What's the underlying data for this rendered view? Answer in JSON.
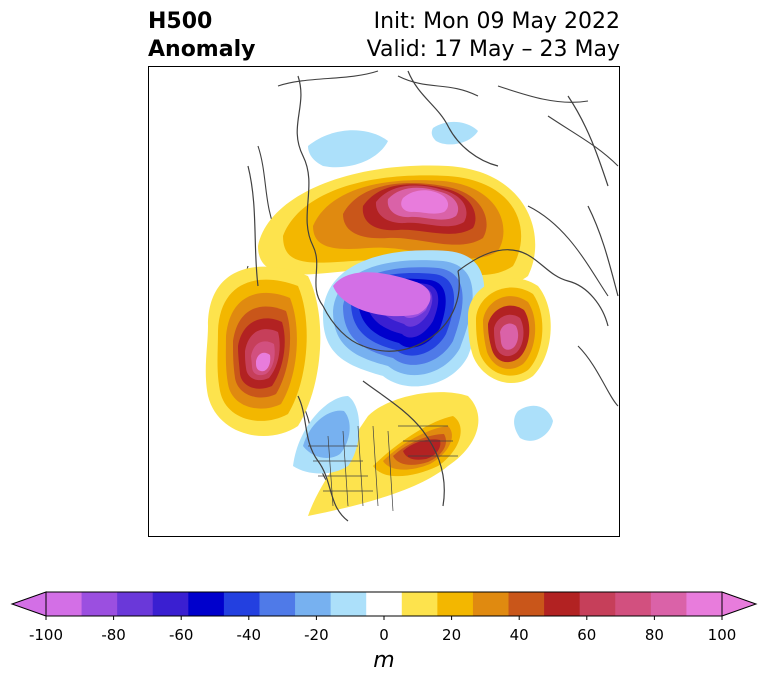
{
  "title": {
    "line1": "H500",
    "line2": "Anomaly",
    "init": "Init: Mon 09 May 2022",
    "valid": "Valid: 17 May – 23 May"
  },
  "colorbar": {
    "unit": "m",
    "ticks": [
      "-100",
      "-80",
      "-60",
      "-40",
      "-20",
      "0",
      "20",
      "40",
      "60",
      "80",
      "100"
    ],
    "bins": [
      {
        "range": "-100 to -90",
        "color": "#d36fe6"
      },
      {
        "range": "-90 to -80",
        "color": "#9b4fe0"
      },
      {
        "range": "-80 to -70",
        "color": "#6a38d9"
      },
      {
        "range": "-70 to -60",
        "color": "#3a1fd1"
      },
      {
        "range": "-60 to -50",
        "color": "#0000cc"
      },
      {
        "range": "-50 to -40",
        "color": "#2340e0"
      },
      {
        "range": "-40 to -30",
        "color": "#4f7ae8"
      },
      {
        "range": "-30 to -20",
        "color": "#77b1f0"
      },
      {
        "range": "-20 to -10",
        "color": "#ace0fa"
      },
      {
        "range": "-10 to 10",
        "color": "#ffffff"
      },
      {
        "range": "10 to 20",
        "color": "#fde34d"
      },
      {
        "range": "20 to 30",
        "color": "#f3b700"
      },
      {
        "range": "30 to 40",
        "color": "#e08a10"
      },
      {
        "range": "40 to 50",
        "color": "#c9561a"
      },
      {
        "range": "50 to 60",
        "color": "#b22222"
      },
      {
        "range": "60 to 70",
        "color": "#c63f5a"
      },
      {
        "range": "70 to 80",
        "color": "#d2507f"
      },
      {
        "range": "80 to 90",
        "color": "#da62a8"
      },
      {
        "range": "90 to 100",
        "color": "#e87cdc"
      }
    ],
    "extend_low_color": "#d36fe6",
    "extend_high_color": "#e87cdc"
  },
  "map": {
    "projection": "north-polar-stereographic",
    "coastline_color": "#404040",
    "anomalies": [
      {
        "region": "Northern Canada / Greenland",
        "sign": "positive",
        "peak_m": 90
      },
      {
        "region": "Arctic Ocean / Siberia",
        "sign": "negative",
        "peak_m": -100
      },
      {
        "region": "Northeast Pacific",
        "sign": "positive",
        "peak_m": 90
      },
      {
        "region": "Scandinavia",
        "sign": "positive",
        "peak_m": 85
      },
      {
        "region": "Eastern Canada / Great Lakes",
        "sign": "positive",
        "peak_m": 60
      },
      {
        "region": "Western United States",
        "sign": "negative",
        "peak_m": -30
      }
    ]
  }
}
